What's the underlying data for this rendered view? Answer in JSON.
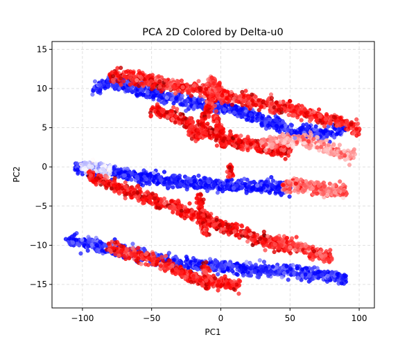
{
  "chart_data": {
    "type": "scatter",
    "title": "PCA 2D Colored by Delta-u0",
    "xlabel": "PC1",
    "ylabel": "PC2",
    "xlim": [
      -122,
      111
    ],
    "ylim": [
      -18,
      16
    ],
    "xticks": [
      -100,
      -50,
      0,
      50,
      100
    ],
    "yticks": [
      -15,
      -10,
      -5,
      0,
      5,
      10,
      15
    ],
    "xtick_labels": [
      "−100",
      "−50",
      "0",
      "50",
      "100"
    ],
    "ytick_labels": [
      "−15",
      "−10",
      "−5",
      "0",
      "5",
      "10",
      "15"
    ],
    "grid": true,
    "colormap": "bwr",
    "colors": {
      "blue": "#0000ff",
      "white": "#ffffff",
      "red": "#ff0000",
      "dark_red": "#800000"
    },
    "bands": [
      {
        "x": [
          -92,
          -82,
          -72,
          -60,
          -48,
          -36,
          -28,
          -22,
          -16,
          -10,
          -5,
          0
        ],
        "y": [
          9.8,
          10.9,
          10.6,
          10.1,
          9.4,
          8.8,
          8.5,
          8.3,
          8.1,
          8.0,
          7.9,
          7.8
        ],
        "color_level": -0.85
      },
      {
        "x": [
          0,
          10,
          20,
          30,
          40,
          50,
          60,
          70,
          80,
          90
        ],
        "y": [
          7.8,
          7.2,
          6.7,
          6.0,
          5.5,
          4.6,
          4.5,
          4.2,
          4.4,
          5.0
        ],
        "color_level": -0.9
      },
      {
        "x": [
          -80,
          -60,
          -40,
          -20,
          0,
          20,
          40,
          60,
          80,
          100
        ],
        "y": [
          11.8,
          11.2,
          10.6,
          10.0,
          9.3,
          8.5,
          7.8,
          6.9,
          6.0,
          4.8
        ],
        "color_level": 0.9
      },
      {
        "x": [
          -50,
          -40,
          -30,
          -22,
          -15,
          -8,
          0,
          10,
          20,
          30,
          40,
          50
        ],
        "y": [
          7.3,
          6.9,
          6.2,
          5.3,
          4.8,
          4.4,
          3.8,
          3.3,
          3.0,
          2.6,
          2.2,
          2.0
        ],
        "color_level": 0.95
      },
      {
        "x": [
          30,
          45,
          60,
          70,
          80,
          90,
          95
        ],
        "y": [
          2.7,
          3.5,
          3.4,
          2.8,
          2.2,
          1.6,
          1.5
        ],
        "color_level": 0.4
      },
      {
        "x": [
          -105,
          -90,
          -75,
          -60,
          -48,
          -35,
          -25,
          -18,
          -12,
          -5,
          0,
          10,
          20,
          30,
          40,
          50
        ],
        "y": [
          -0.1,
          -0.4,
          -0.7,
          -1.2,
          -1.5,
          -1.8,
          -2.0,
          -2.1,
          -2.2,
          -2.3,
          -2.4,
          -2.4,
          -2.5,
          -2.5,
          -2.6,
          -2.7
        ],
        "color_level": -0.9
      },
      {
        "x": [
          -100,
          -90,
          -80
        ],
        "y": [
          0.0,
          -0.2,
          -0.5
        ],
        "color_level": -0.15
      },
      {
        "x": [
          45,
          60,
          70,
          80,
          90
        ],
        "y": [
          -2.3,
          -2.5,
          -2.7,
          -3.0,
          -3.2
        ],
        "color_level": 0.6
      },
      {
        "x": [
          -95,
          -80,
          -65,
          -52,
          -40,
          -30,
          -20,
          -12,
          -5,
          0,
          10,
          20,
          30,
          40,
          50
        ],
        "y": [
          -1.2,
          -2.2,
          -3.2,
          -4.1,
          -4.8,
          -5.4,
          -6.0,
          -6.6,
          -7.1,
          -7.5,
          -8.1,
          -8.7,
          -9.3,
          -9.9,
          -10.4
        ],
        "color_level": 0.95
      },
      {
        "x": [
          40,
          50,
          60,
          70,
          80
        ],
        "y": [
          -9.2,
          -9.8,
          -10.4,
          -11.1,
          -11.8
        ],
        "color_level": 0.75
      },
      {
        "x": [
          -110,
          -95,
          -80,
          -65,
          -50,
          -40,
          -30,
          -20,
          -10,
          0,
          15,
          30,
          45,
          60,
          75,
          85,
          90
        ],
        "y": [
          -9.4,
          -9.8,
          -10.4,
          -11.0,
          -11.6,
          -12.0,
          -12.3,
          -12.5,
          -12.6,
          -12.7,
          -12.9,
          -13.1,
          -13.3,
          -13.6,
          -13.9,
          -14.1,
          -14.3
        ],
        "color_level": -0.85
      },
      {
        "x": [
          -80,
          -65,
          -50,
          -40,
          -30,
          -22,
          -15
        ],
        "y": [
          -10.2,
          -11.0,
          -11.8,
          -12.5,
          -13.3,
          -14.0,
          -14.5
        ],
        "color_level": 0.9
      },
      {
        "x": [
          -15,
          -5,
          5,
          13
        ],
        "y": [
          -14.6,
          -14.8,
          -15.0,
          -15.1
        ],
        "color_level": 0.95
      },
      {
        "x": [
          -22,
          -20,
          -18,
          -17,
          -16,
          -14,
          -12,
          -10,
          -7,
          -4
        ],
        "y": [
          5.0,
          4.5,
          4.2,
          4.0,
          4.2,
          5.3,
          6.3,
          7.3,
          8.5,
          9.8
        ],
        "color_level": 0.9
      },
      {
        "x": [
          -8,
          -6,
          -4,
          -2,
          -1
        ],
        "y": [
          11.2,
          10.9,
          10.5,
          10.0,
          9.6
        ],
        "color_level": 0.8
      },
      {
        "x": [
          -4,
          -2,
          0,
          1,
          2
        ],
        "y": [
          6.5,
          5.6,
          4.5,
          3.5,
          2.6
        ],
        "color_level": 0.95
      },
      {
        "x": [
          -16,
          -15,
          -14,
          -13,
          -12,
          -11,
          -10
        ],
        "y": [
          -3.8,
          -4.6,
          -5.6,
          -6.8,
          -7.8,
          -8.2,
          -8.6
        ],
        "color_level": 0.95
      },
      {
        "x": [
          6,
          7,
          8
        ],
        "y": [
          -0.1,
          -0.5,
          -0.9
        ],
        "color_level": 0.9
      },
      {
        "x": [
          -12,
          -11,
          -10,
          -9
        ],
        "y": [
          -12.7,
          -13.6,
          -14.6,
          -15.2
        ],
        "color_level": 0.9
      }
    ]
  }
}
